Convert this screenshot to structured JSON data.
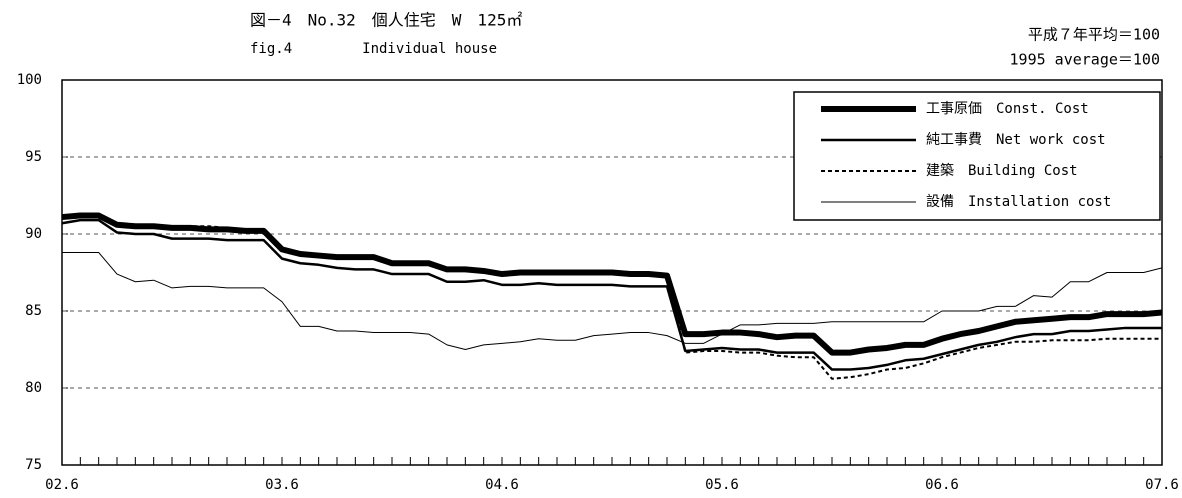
{
  "chart_data": {
    "type": "line",
    "title": "図－4　No.32　個人住宅　W　125㎡",
    "subtitle": "fig.4　　　　　Individual house",
    "annotations": [
      "平成７年平均＝100",
      "1995 average＝100"
    ],
    "categories": [
      "02.6",
      null,
      null,
      null,
      null,
      null,
      null,
      null,
      null,
      null,
      null,
      null,
      "03.6",
      null,
      null,
      null,
      null,
      null,
      null,
      null,
      null,
      null,
      null,
      null,
      "04.6",
      null,
      null,
      null,
      null,
      null,
      null,
      null,
      null,
      null,
      null,
      null,
      "05.6",
      null,
      null,
      null,
      null,
      null,
      null,
      null,
      null,
      null,
      null,
      null,
      "06.6",
      null,
      null,
      null,
      null,
      null,
      null,
      null,
      null,
      null,
      null,
      null,
      "07.6"
    ],
    "series": [
      {
        "name": "工事原価　Const. Cost",
        "color": "#000000",
        "values": [
          91.1,
          91.2,
          91.2,
          90.6,
          90.5,
          90.5,
          90.4,
          90.4,
          90.3,
          90.3,
          90.2,
          90.2,
          89.0,
          88.7,
          88.6,
          88.5,
          88.5,
          88.5,
          88.1,
          88.1,
          88.1,
          87.7,
          87.7,
          87.6,
          87.4,
          87.5,
          87.5,
          87.5,
          87.5,
          87.5,
          87.5,
          87.4,
          87.4,
          87.3,
          83.5,
          83.5,
          83.6,
          83.6,
          83.5,
          83.3,
          83.4,
          83.4,
          82.3,
          82.3,
          82.5,
          82.6,
          82.8,
          82.8,
          83.2,
          83.5,
          83.7,
          84.0,
          84.3,
          84.4,
          84.5,
          84.6,
          84.6,
          84.8,
          84.8,
          84.8,
          84.9
        ]
      },
      {
        "name": "純工事費　Net work cost",
        "color": "#000000",
        "values": [
          90.7,
          90.9,
          90.9,
          90.1,
          90.0,
          90.0,
          89.7,
          89.7,
          89.7,
          89.6,
          89.6,
          89.6,
          88.4,
          88.1,
          88.0,
          87.8,
          87.7,
          87.7,
          87.4,
          87.4,
          87.4,
          86.9,
          86.9,
          87.0,
          86.7,
          86.7,
          86.8,
          86.7,
          86.7,
          86.7,
          86.7,
          86.6,
          86.6,
          86.6,
          82.4,
          82.5,
          82.6,
          82.5,
          82.5,
          82.3,
          82.3,
          82.3,
          81.2,
          81.2,
          81.3,
          81.5,
          81.8,
          81.9,
          82.2,
          82.5,
          82.8,
          83.0,
          83.3,
          83.5,
          83.5,
          83.7,
          83.7,
          83.8,
          83.9,
          83.9,
          83.9
        ]
      },
      {
        "name": "建築　Building Cost",
        "color": "#000000",
        "values": [
          91.0,
          91.1,
          91.1,
          90.6,
          90.6,
          90.6,
          90.5,
          90.5,
          90.5,
          90.4,
          90.3,
          90.3,
          89.0,
          88.8,
          88.7,
          88.6,
          88.6,
          88.6,
          88.2,
          88.1,
          88.1,
          87.7,
          87.7,
          87.6,
          87.5,
          87.5,
          87.6,
          87.6,
          87.6,
          87.6,
          87.6,
          87.5,
          87.5,
          87.4,
          82.3,
          82.4,
          82.4,
          82.3,
          82.3,
          82.1,
          82.0,
          82.0,
          80.6,
          80.7,
          80.9,
          81.2,
          81.3,
          81.6,
          82.0,
          82.3,
          82.6,
          82.8,
          83.0,
          83.0,
          83.1,
          83.1,
          83.1,
          83.2,
          83.2,
          83.2,
          83.2
        ]
      },
      {
        "name": "設備　Installation cost",
        "color": "#000000",
        "values": [
          88.8,
          88.8,
          88.8,
          87.4,
          86.9,
          87.0,
          86.5,
          86.6,
          86.6,
          86.5,
          86.5,
          86.5,
          85.6,
          84.0,
          84.0,
          83.7,
          83.7,
          83.6,
          83.6,
          83.6,
          83.5,
          82.8,
          82.5,
          82.8,
          82.9,
          83.0,
          83.2,
          83.1,
          83.1,
          83.4,
          83.5,
          83.6,
          83.6,
          83.4,
          82.9,
          82.9,
          83.5,
          84.1,
          84.1,
          84.2,
          84.2,
          84.2,
          84.3,
          84.3,
          84.3,
          84.3,
          84.3,
          84.3,
          85.0,
          85.0,
          85.0,
          85.3,
          85.3,
          86.0,
          85.9,
          86.9,
          86.9,
          87.5,
          87.5,
          87.5,
          87.8
        ]
      }
    ],
    "ylim": [
      75,
      100
    ],
    "yticks": [
      75,
      80,
      85,
      90,
      95,
      100
    ],
    "grid": true,
    "legend": "upper right"
  }
}
